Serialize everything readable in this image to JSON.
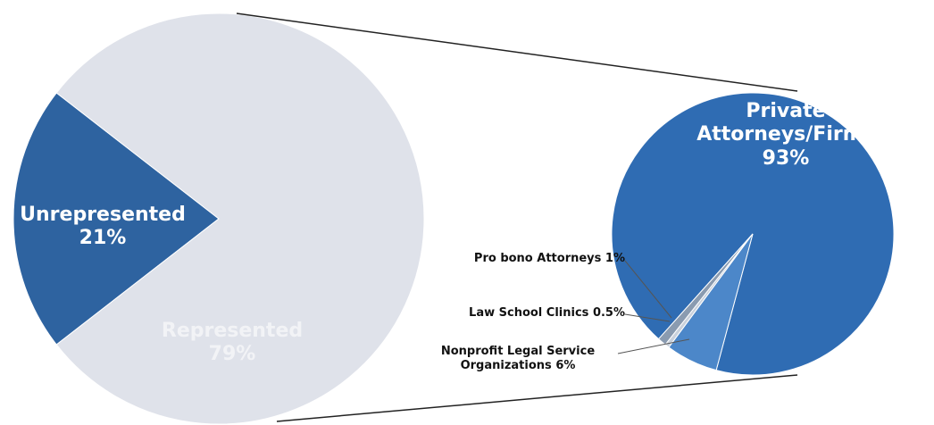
{
  "chart_data": [
    {
      "type": "pie",
      "categories": [
        "Unrepresented",
        "Represented"
      ],
      "values": [
        21,
        79
      ],
      "value_labels": [
        "21%",
        "79%"
      ],
      "colors": [
        "#2e63a0",
        "#dfe2ea"
      ]
    },
    {
      "type": "pie",
      "categories": [
        "Private Attorneys/Firms",
        "Pro bono Attorneys",
        "Law School Clinics",
        "Nonprofit Legal Service Organizations"
      ],
      "values": [
        93,
        1,
        0.5,
        6
      ],
      "value_labels": [
        "93%",
        "1%",
        "0.5%",
        "6%"
      ],
      "colors": [
        "#2f6cb3",
        "#8a9bb0",
        "#c9d1dc",
        "#4c87c9"
      ]
    }
  ]
}
